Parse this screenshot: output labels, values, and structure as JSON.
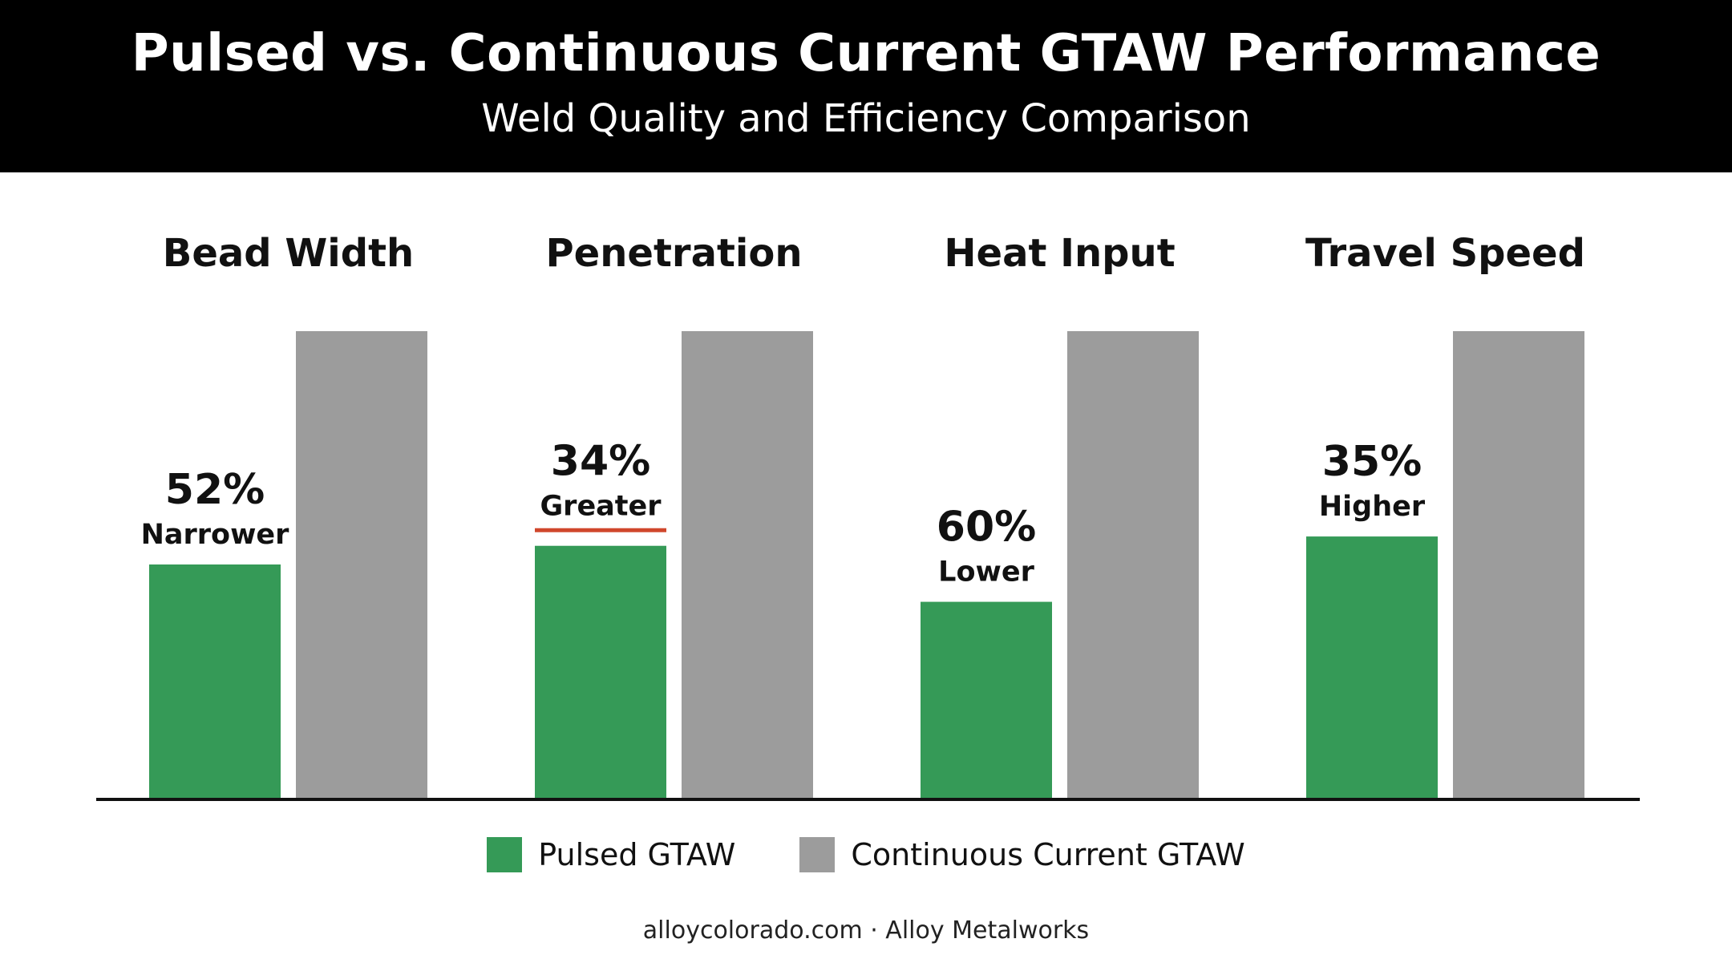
{
  "header": {
    "title": "Pulsed vs. Continuous Current GTAW Performance",
    "subtitle": "Weld Quality and Efficiency Comparison"
  },
  "chart_data": {
    "type": "bar",
    "categories": [
      "Bead Width",
      "Penetration",
      "Heat Input",
      "Travel Speed"
    ],
    "series": [
      {
        "name": "Pulsed GTAW",
        "color": "#359a57",
        "values": [
          50,
          54,
          42,
          56
        ]
      },
      {
        "name": "Continuous Current GTAW",
        "color": "#9c9c9c",
        "values": [
          100,
          100,
          100,
          100
        ]
      }
    ],
    "annotations": [
      {
        "category": "Bead Width",
        "value": "52%",
        "label": "Narrower",
        "underline": false
      },
      {
        "category": "Penetration",
        "value": "34%",
        "label": "Greater",
        "underline": true
      },
      {
        "category": "Heat Input",
        "value": "60%",
        "label": "Lower",
        "underline": false
      },
      {
        "category": "Travel Speed",
        "value": "35%",
        "label": "Higher",
        "underline": false
      }
    ],
    "underline_color": "#d0472c",
    "ylim": [
      0,
      100
    ],
    "legend_position": "bottom",
    "grid": false
  },
  "footer": {
    "text": "alloycolorado.com · Alloy Metalworks"
  }
}
